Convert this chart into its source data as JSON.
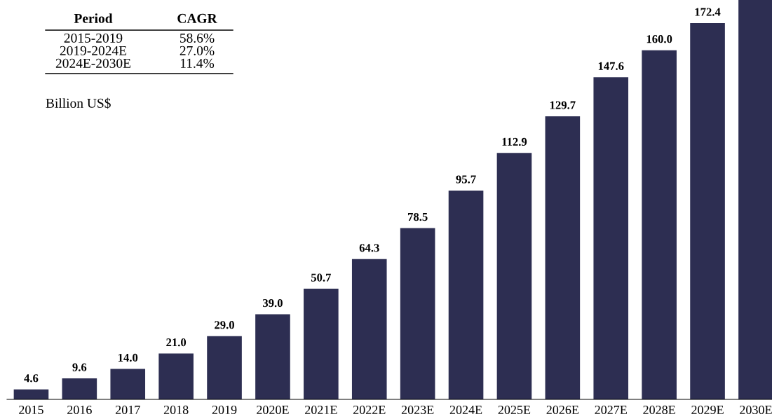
{
  "chart_data": {
    "type": "bar",
    "categories": [
      "2015",
      "2016",
      "2017",
      "2018",
      "2019",
      "2020E",
      "2021E",
      "2022E",
      "2023E",
      "2024E",
      "2025E",
      "2026E",
      "2027E",
      "2028E",
      "2029E",
      "2030E"
    ],
    "values": [
      4.6,
      9.6,
      14.0,
      21.0,
      29.0,
      39.0,
      50.7,
      64.3,
      78.5,
      95.7,
      112.9,
      129.7,
      147.6,
      160.0,
      172.4,
      183
    ],
    "value_labels": [
      "4.6",
      "9.6",
      "14.0",
      "21.0",
      "29.0",
      "39.0",
      "50.7",
      "64.3",
      "78.5",
      "95.7",
      "112.9",
      "129.7",
      "147.6",
      "160.0",
      "172.4",
      null
    ],
    "color": "#2d2e52",
    "ylim": [
      0,
      183
    ],
    "grid": false,
    "legend": false,
    "tick_labels": "x",
    "annotations": [
      "Period",
      "CAGR",
      "2015-2019",
      "58.6%",
      "2019-2024E",
      "27.0%",
      "2024E-2030E",
      "11.4%",
      "Billion US$"
    ]
  }
}
